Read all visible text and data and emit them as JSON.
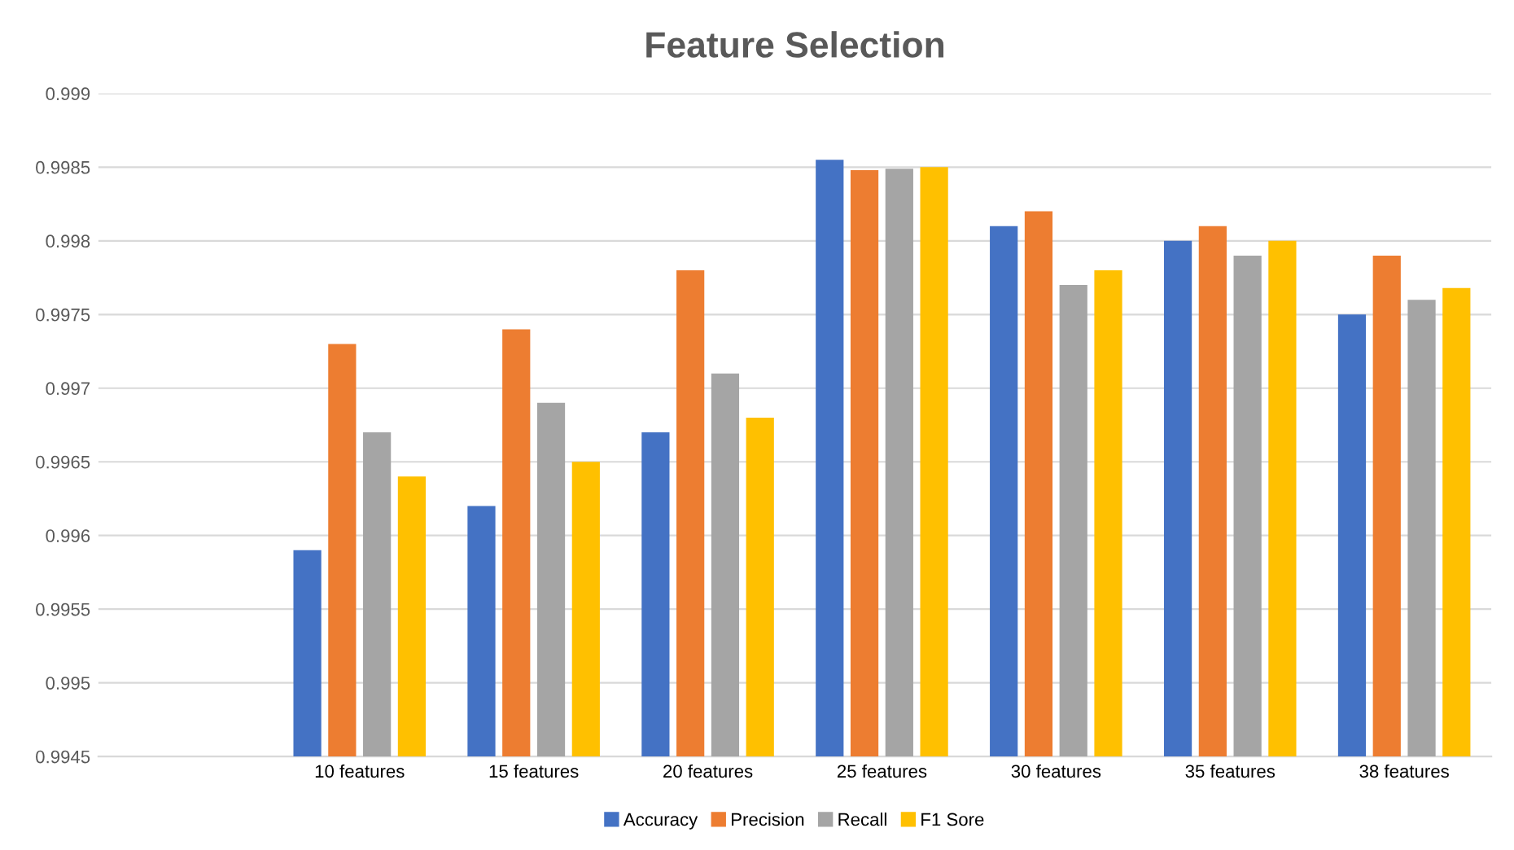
{
  "chart_data": {
    "type": "bar",
    "title": "Feature Selection",
    "categories": [
      null,
      "10 features",
      "15 features",
      "20 features",
      "25 features",
      "30 features",
      "35 features",
      "38 features"
    ],
    "series": [
      {
        "name": "Accuracy",
        "color": "#4472c4",
        "values": [
          null,
          0.9959,
          0.9962,
          0.9967,
          0.99855,
          0.9981,
          0.998,
          0.9975
        ]
      },
      {
        "name": "Precision",
        "color": "#ed7d31",
        "values": [
          null,
          0.9973,
          0.9974,
          0.9978,
          0.99848,
          0.9982,
          0.9981,
          0.9979
        ]
      },
      {
        "name": "Recall",
        "color": "#a5a5a5",
        "values": [
          null,
          0.9967,
          0.9969,
          0.9971,
          0.99849,
          0.9977,
          0.9979,
          0.9976
        ]
      },
      {
        "name": "F1 Sore",
        "color": "#ffc000",
        "values": [
          null,
          0.9964,
          0.9965,
          0.9968,
          0.9985,
          0.9978,
          0.998,
          0.99768
        ]
      }
    ],
    "ylim": [
      0.9945,
      0.999
    ],
    "yticks": [
      0.9945,
      0.995,
      0.9955,
      0.996,
      0.9965,
      0.997,
      0.9975,
      0.998,
      0.9985,
      0.999
    ],
    "grid": "y",
    "legend": "bottom"
  }
}
